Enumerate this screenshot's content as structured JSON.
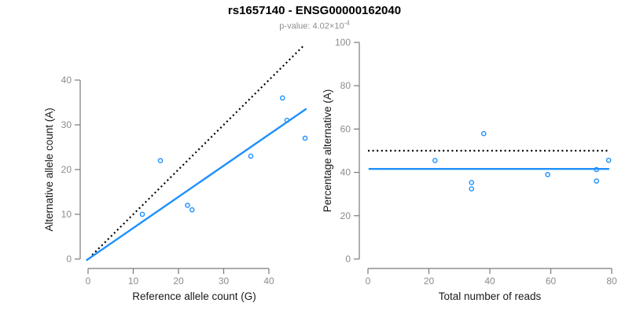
{
  "header": {
    "title": "rs1657140 - ENSG00000162040",
    "subtitle_prefix": "p-value: 4.02×10",
    "p_value_exponent": "-4"
  },
  "colors": {
    "accent_blue": "#1E90FF",
    "dotted_line_black": "#000000",
    "axis_line_gray": "#7a7a7a",
    "tick_label_gray": "#8c8c8c",
    "axis_title_color": "#1a1a1a",
    "subtitle_gray": "#8e8e8e"
  },
  "chart_data": [
    {
      "type": "scatter",
      "title": "",
      "xlabel": "Reference allele count (G)",
      "ylabel": "Alternative allele count (A)",
      "xlim": [
        0,
        48.5
      ],
      "ylim": [
        0,
        48.5
      ],
      "xticks": [
        0,
        10,
        20,
        30,
        40
      ],
      "yticks": [
        0,
        10,
        20,
        30,
        40
      ],
      "grid": false,
      "legend": "none",
      "points": [
        [
          12,
          10
        ],
        [
          16,
          22
        ],
        [
          22,
          12
        ],
        [
          23,
          11
        ],
        [
          36,
          23
        ],
        [
          43,
          36
        ],
        [
          44,
          31
        ],
        [
          48,
          27
        ]
      ],
      "lines": [
        {
          "name": "identity-line",
          "style": "dotted",
          "color": "#000000",
          "from": [
            0.9,
            0.9
          ],
          "to": [
            47.9,
            47.9
          ]
        },
        {
          "name": "regression-line",
          "style": "solid",
          "color": "#1E90FF",
          "from": [
            -0.4,
            -0.3
          ],
          "to": [
            48.3,
            33.6
          ]
        }
      ]
    },
    {
      "type": "scatter",
      "title": "",
      "xlabel": "Total number of reads",
      "ylabel": "Percentage alternative (A)",
      "xlim": [
        0,
        80
      ],
      "ylim": [
        0,
        100
      ],
      "xticks": [
        0,
        20,
        40,
        60,
        80
      ],
      "yticks": [
        0,
        20,
        40,
        60,
        80,
        100
      ],
      "grid": false,
      "legend": "none",
      "points": [
        [
          22,
          45.5
        ],
        [
          34,
          35.3
        ],
        [
          34,
          32.4
        ],
        [
          38,
          57.9
        ],
        [
          59,
          39.0
        ],
        [
          75,
          41.3
        ],
        [
          75,
          36.0
        ],
        [
          79,
          45.6
        ]
      ],
      "lines": [
        {
          "name": "fifty-percent-line",
          "style": "dotted",
          "color": "#000000",
          "from": [
            0,
            50
          ],
          "to": [
            79.2,
            50
          ]
        },
        {
          "name": "mean-percentage-line",
          "style": "solid",
          "color": "#1E90FF",
          "from": [
            0.2,
            41.6
          ],
          "to": [
            79.2,
            41.6
          ]
        }
      ]
    }
  ]
}
